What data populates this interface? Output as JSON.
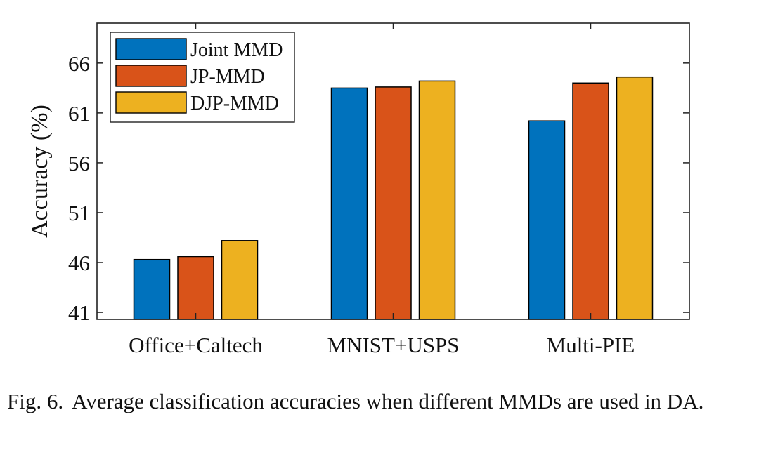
{
  "chart_data": {
    "type": "bar",
    "title": "",
    "xlabel": "",
    "ylabel": "Accuracy (%)",
    "categories": [
      "Office+Caltech",
      "MNIST+USPS",
      "Multi-PIE"
    ],
    "series": [
      {
        "name": "Joint MMD",
        "color": "#0072bd",
        "values": [
          46.3,
          63.5,
          60.2
        ]
      },
      {
        "name": "JP-MMD",
        "color": "#d95319",
        "values": [
          46.6,
          63.6,
          64.0
        ]
      },
      {
        "name": "DJP-MMD",
        "color": "#edb120",
        "values": [
          48.2,
          64.2,
          64.6
        ]
      }
    ],
    "ylim": [
      40.3,
      70.0
    ],
    "yticks": [
      41,
      46,
      51,
      56,
      61,
      66
    ],
    "grid": false,
    "legend_position": "top-left"
  },
  "caption": {
    "label": "Fig. 6.",
    "text": "Average classification accuracies when different MMDs are used in DA."
  }
}
